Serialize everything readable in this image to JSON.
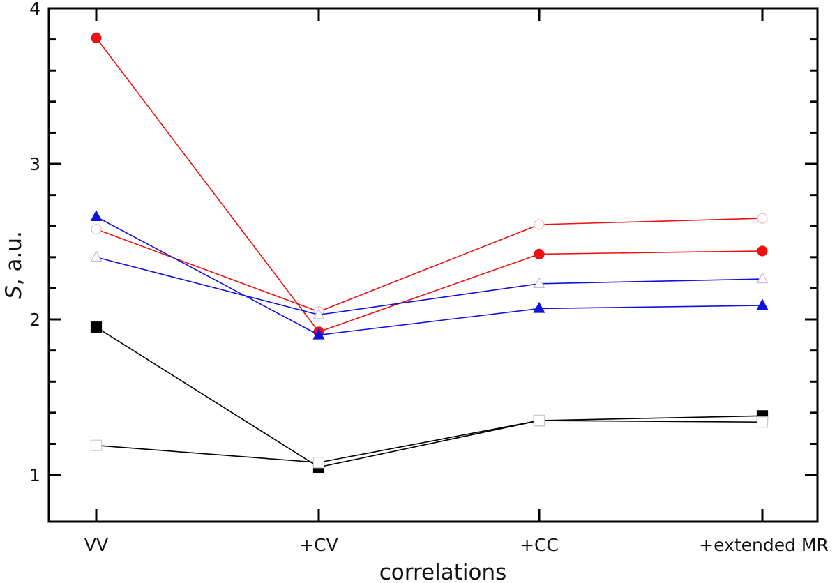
{
  "chart_data": {
    "type": "line",
    "title": "",
    "xlabel": "correlations",
    "ylabel_symbol": "S",
    "ylabel_unit": ", a.u.",
    "categories": [
      "VV",
      "+CV",
      "+CC",
      "+extended MR"
    ],
    "ylim": [
      0.7,
      4.0
    ],
    "yticks_major": [
      1,
      2,
      3,
      4
    ],
    "yticks_minor": [
      1.2,
      1.4,
      1.6,
      1.8,
      2.2,
      2.4,
      2.6,
      2.8,
      3.2,
      3.4,
      3.6,
      3.8
    ],
    "grid": false,
    "legend": "none",
    "series": [
      {
        "name": "red-filled-circle",
        "color": "#ee1111",
        "marker": "circle",
        "filled": true,
        "values": [
          3.81,
          1.92,
          2.42,
          2.44
        ]
      },
      {
        "name": "red-open-circle",
        "color": "#ee1111",
        "marker": "circle",
        "filled": false,
        "values": [
          2.58,
          2.05,
          2.61,
          2.65
        ]
      },
      {
        "name": "blue-filled-triangle",
        "color": "#1111dd",
        "marker": "triangle",
        "filled": true,
        "values": [
          2.66,
          1.9,
          2.07,
          2.09
        ]
      },
      {
        "name": "blue-open-triangle",
        "color": "#1111dd",
        "marker": "triangle",
        "filled": false,
        "values": [
          2.4,
          2.03,
          2.23,
          2.26
        ]
      },
      {
        "name": "black-filled-square",
        "color": "#000000",
        "marker": "square",
        "filled": true,
        "values": [
          1.95,
          1.05,
          1.35,
          1.38
        ]
      },
      {
        "name": "black-open-square",
        "color": "#000000",
        "marker": "square",
        "filled": false,
        "values": [
          1.19,
          1.08,
          1.35,
          1.34
        ]
      }
    ]
  }
}
